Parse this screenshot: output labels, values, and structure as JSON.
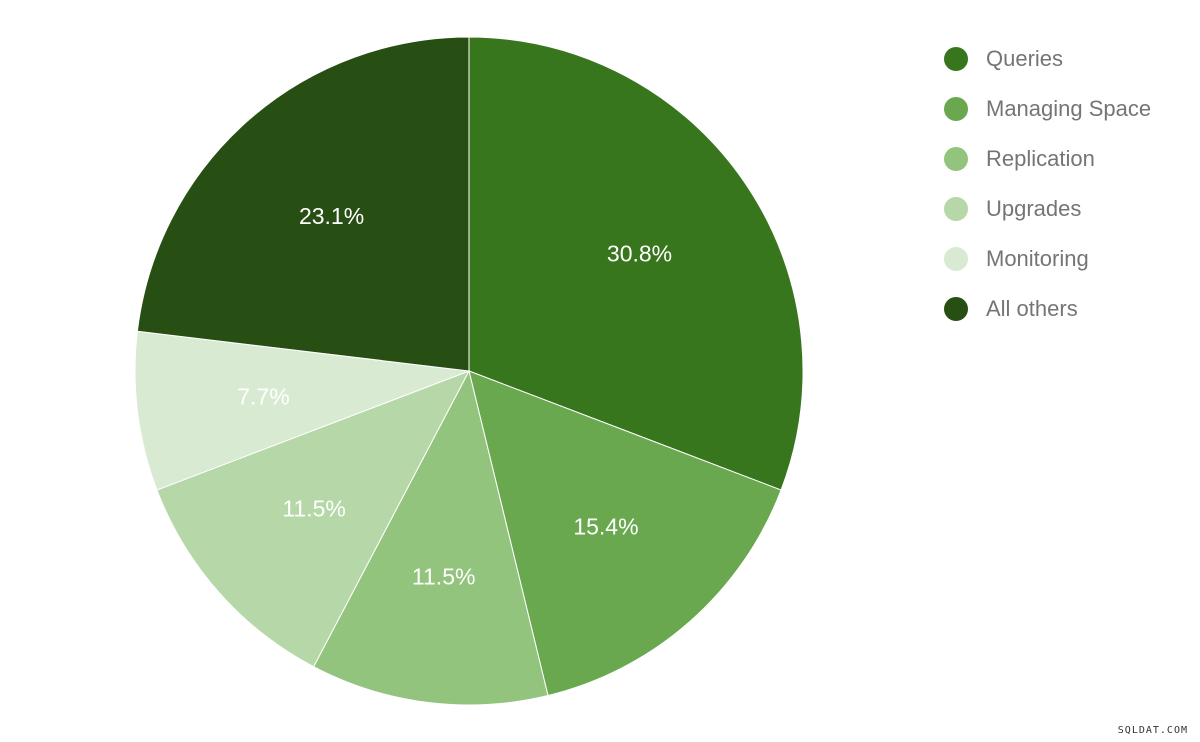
{
  "chart_data": {
    "type": "pie",
    "start_angle_deg": 0,
    "direction": "clockwise",
    "legend_position": "right",
    "slices": [
      {
        "name": "Queries",
        "value": 30.8,
        "label": "30.8%",
        "color": "#38761d",
        "label_color": "#ffffff"
      },
      {
        "name": "Managing Space",
        "value": 15.4,
        "label": "15.4%",
        "color": "#6aa84f",
        "label_color": "#ffffff"
      },
      {
        "name": "Replication",
        "value": 11.5,
        "label": "11.5%",
        "color": "#93c47d",
        "label_color": "#ffffff"
      },
      {
        "name": "Upgrades",
        "value": 11.5,
        "label": "11.5%",
        "color": "#b6d7a8",
        "label_color": "#ffffff"
      },
      {
        "name": "Monitoring",
        "value": 7.7,
        "label": "7.7%",
        "color": "#d9ead3",
        "label_color": "#ffffff"
      },
      {
        "name": "All others",
        "value": 23.1,
        "label": "23.1%",
        "color": "#274e13",
        "label_color": "#ffffff"
      }
    ]
  },
  "watermark": "SQLDAT.COM"
}
